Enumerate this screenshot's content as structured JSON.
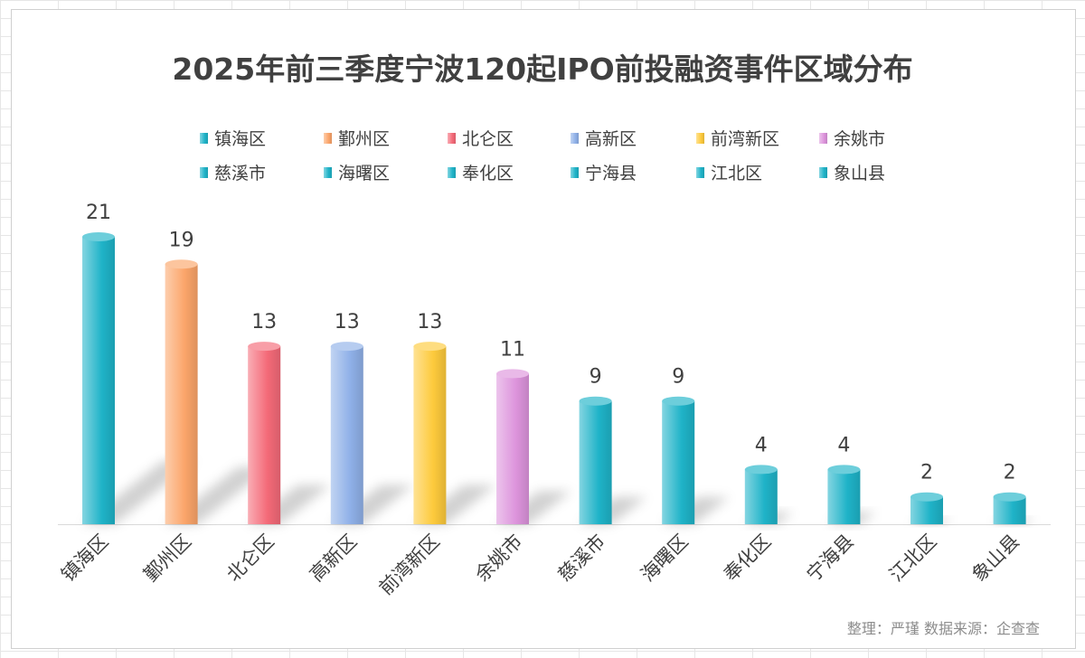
{
  "chart_data": {
    "type": "bar",
    "title": "2025年前三季度宁波120起IPO前投融资事件区域分布",
    "categories": [
      "镇海区",
      "鄞州区",
      "北仑区",
      "高新区",
      "前湾新区",
      "余姚市",
      "慈溪市",
      "海曙区",
      "奉化区",
      "宁海县",
      "江北区",
      "象山县"
    ],
    "values": [
      21,
      19,
      13,
      13,
      13,
      11,
      9,
      9,
      4,
      4,
      2,
      2
    ],
    "colors": [
      "#1fb3c8",
      "#fba56a",
      "#f46a78",
      "#8fb0e8",
      "#fdca3c",
      "#dd94dc",
      "#1fb3c8",
      "#1fb3c8",
      "#1fb3c8",
      "#1fb3c8",
      "#1fb3c8",
      "#1fb3c8"
    ],
    "legend": [
      "镇海区",
      "鄞州区",
      "北仑区",
      "高新区",
      "前湾新区",
      "余姚市",
      "慈溪市",
      "海曙区",
      "奉化区",
      "宁海县",
      "江北区",
      "象山县"
    ],
    "legend_position": "top",
    "xlabel": "",
    "ylabel": "",
    "ylim": [
      0,
      21
    ],
    "grid": false,
    "data_labels": true
  },
  "source_note": "整理：严瑾  数据来源：企查查"
}
